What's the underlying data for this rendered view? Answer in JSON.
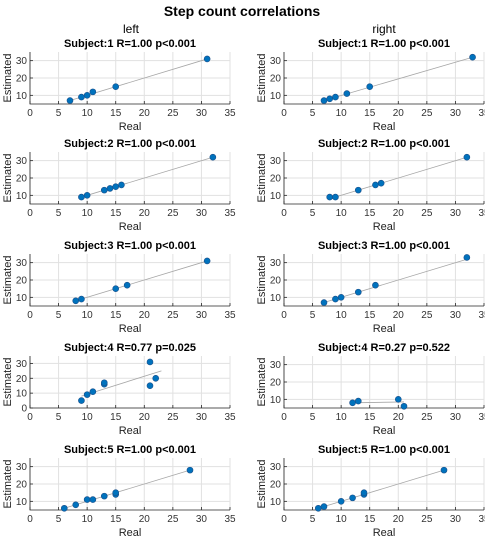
{
  "title": "Step count correlations",
  "columns": [
    "left",
    "right"
  ],
  "colors": {
    "points": "#0072bd",
    "fit_line": "#a6a6a6",
    "grid": "#e1e1e1"
  },
  "chart_data": [
    {
      "type": "scatter",
      "column": "left",
      "title": "Subject:1 R=1.00 p<0.001",
      "xlabel": "Real",
      "ylabel": "Estimated",
      "xlim": [
        0,
        35
      ],
      "ylim": [
        5,
        35
      ],
      "xticks": [
        0,
        5,
        10,
        15,
        20,
        25,
        30,
        35
      ],
      "yticks": [
        10,
        20,
        30
      ],
      "grid": true,
      "points": [
        [
          7,
          7
        ],
        [
          9,
          9
        ],
        [
          10,
          10
        ],
        [
          11,
          12
        ],
        [
          15,
          15
        ],
        [
          31,
          31
        ]
      ],
      "fit": {
        "x": [
          7,
          31
        ],
        "y": [
          7,
          31
        ]
      }
    },
    {
      "type": "scatter",
      "column": "right",
      "title": "Subject:1 R=1.00 p<0.001",
      "xlabel": "Real",
      "ylabel": "Estimated",
      "xlim": [
        0,
        35
      ],
      "ylim": [
        5,
        35
      ],
      "xticks": [
        0,
        5,
        10,
        15,
        20,
        25,
        30,
        35
      ],
      "yticks": [
        10,
        20,
        30
      ],
      "grid": true,
      "points": [
        [
          7,
          7
        ],
        [
          8,
          8
        ],
        [
          9,
          9
        ],
        [
          11,
          11
        ],
        [
          15,
          15
        ],
        [
          33,
          32
        ]
      ],
      "fit": {
        "x": [
          7,
          33
        ],
        "y": [
          7,
          32
        ]
      }
    },
    {
      "type": "scatter",
      "column": "left",
      "title": "Subject:2 R=1.00 p<0.001",
      "xlabel": "Real",
      "ylabel": "Estimated",
      "xlim": [
        0,
        35
      ],
      "ylim": [
        5,
        35
      ],
      "xticks": [
        0,
        5,
        10,
        15,
        20,
        25,
        30,
        35
      ],
      "yticks": [
        10,
        20,
        30
      ],
      "grid": true,
      "points": [
        [
          9,
          9
        ],
        [
          10,
          10
        ],
        [
          13,
          13
        ],
        [
          14,
          14
        ],
        [
          15,
          15
        ],
        [
          16,
          16
        ],
        [
          32,
          32
        ]
      ],
      "fit": {
        "x": [
          9,
          32
        ],
        "y": [
          9,
          32
        ]
      }
    },
    {
      "type": "scatter",
      "column": "right",
      "title": "Subject:2 R=1.00 p<0.001",
      "xlabel": "Real",
      "ylabel": "Estimated",
      "xlim": [
        0,
        35
      ],
      "ylim": [
        5,
        35
      ],
      "xticks": [
        0,
        5,
        10,
        15,
        20,
        25,
        30,
        35
      ],
      "yticks": [
        10,
        20,
        30
      ],
      "grid": true,
      "points": [
        [
          8,
          9
        ],
        [
          9,
          9
        ],
        [
          13,
          13
        ],
        [
          16,
          16
        ],
        [
          17,
          17
        ],
        [
          32,
          32
        ]
      ],
      "fit": {
        "x": [
          8,
          32
        ],
        "y": [
          8,
          32
        ]
      }
    },
    {
      "type": "scatter",
      "column": "left",
      "title": "Subject:3 R=1.00 p<0.001",
      "xlabel": "Real",
      "ylabel": "Estimated",
      "xlim": [
        0,
        35
      ],
      "ylim": [
        5,
        35
      ],
      "xticks": [
        0,
        5,
        10,
        15,
        20,
        25,
        30,
        35
      ],
      "yticks": [
        10,
        20,
        30
      ],
      "grid": true,
      "points": [
        [
          8,
          8
        ],
        [
          9,
          9
        ],
        [
          15,
          15
        ],
        [
          17,
          17
        ],
        [
          31,
          31
        ]
      ],
      "fit": {
        "x": [
          8,
          31
        ],
        "y": [
          8,
          31
        ]
      }
    },
    {
      "type": "scatter",
      "column": "right",
      "title": "Subject:3 R=1.00 p<0.001",
      "xlabel": "Real",
      "ylabel": "Estimated",
      "xlim": [
        0,
        35
      ],
      "ylim": [
        5,
        35
      ],
      "xticks": [
        0,
        5,
        10,
        15,
        20,
        25,
        30,
        35
      ],
      "yticks": [
        10,
        20,
        30
      ],
      "grid": true,
      "points": [
        [
          7,
          7
        ],
        [
          9,
          9
        ],
        [
          10,
          10
        ],
        [
          13,
          13
        ],
        [
          16,
          17
        ],
        [
          32,
          33
        ]
      ],
      "fit": {
        "x": [
          7,
          32
        ],
        "y": [
          7,
          32
        ]
      }
    },
    {
      "type": "scatter",
      "column": "left",
      "title": "Subject:4 R=0.77 p=0.025",
      "xlabel": "Real",
      "ylabel": "Estimated",
      "xlim": [
        0,
        35
      ],
      "ylim": [
        0,
        35
      ],
      "xticks": [
        0,
        5,
        10,
        15,
        20,
        25,
        30,
        35
      ],
      "yticks": [
        0,
        10,
        20,
        30
      ],
      "grid": true,
      "points": [
        [
          9,
          5
        ],
        [
          10,
          9
        ],
        [
          11,
          11
        ],
        [
          13,
          16
        ],
        [
          13,
          17
        ],
        [
          21,
          31
        ],
        [
          21,
          15
        ],
        [
          22,
          20
        ]
      ],
      "fit": {
        "x": [
          9,
          23
        ],
        "y": [
          8,
          25
        ]
      }
    },
    {
      "type": "scatter",
      "column": "right",
      "title": "Subject:4 R=0.27 p=0.522",
      "xlabel": "Real",
      "ylabel": "Estimated",
      "xlim": [
        0,
        35
      ],
      "ylim": [
        5,
        35
      ],
      "xticks": [
        0,
        5,
        10,
        15,
        20,
        25,
        30,
        35
      ],
      "yticks": [
        10,
        20,
        30
      ],
      "grid": true,
      "points": [
        [
          12,
          8
        ],
        [
          13,
          9
        ],
        [
          20,
          10
        ],
        [
          21,
          6
        ]
      ],
      "fit": {
        "x": [
          12,
          21
        ],
        "y": [
          8,
          8.5
        ]
      }
    },
    {
      "type": "scatter",
      "column": "left",
      "title": "Subject:5 R=1.00 p<0.001",
      "xlabel": "Real",
      "ylabel": "Estimated",
      "xlim": [
        0,
        35
      ],
      "ylim": [
        5,
        35
      ],
      "xticks": [
        0,
        5,
        10,
        15,
        20,
        25,
        30,
        35
      ],
      "yticks": [
        10,
        20,
        30
      ],
      "grid": true,
      "points": [
        [
          6,
          6
        ],
        [
          8,
          8
        ],
        [
          10,
          11
        ],
        [
          11,
          11
        ],
        [
          13,
          13
        ],
        [
          15,
          14
        ],
        [
          15,
          15
        ],
        [
          28,
          28
        ]
      ],
      "fit": {
        "x": [
          6,
          28
        ],
        "y": [
          6,
          28
        ]
      }
    },
    {
      "type": "scatter",
      "column": "right",
      "title": "Subject:5 R=1.00 p<0.001",
      "xlabel": "Real",
      "ylabel": "Estimated",
      "xlim": [
        0,
        35
      ],
      "ylim": [
        5,
        35
      ],
      "xticks": [
        0,
        5,
        10,
        15,
        20,
        25,
        30,
        35
      ],
      "yticks": [
        10,
        20,
        30
      ],
      "grid": true,
      "points": [
        [
          6,
          6
        ],
        [
          7,
          7
        ],
        [
          10,
          10
        ],
        [
          12,
          12
        ],
        [
          14,
          14
        ],
        [
          14,
          15
        ],
        [
          28,
          28
        ]
      ],
      "fit": {
        "x": [
          6,
          28
        ],
        "y": [
          6,
          28
        ]
      }
    }
  ]
}
